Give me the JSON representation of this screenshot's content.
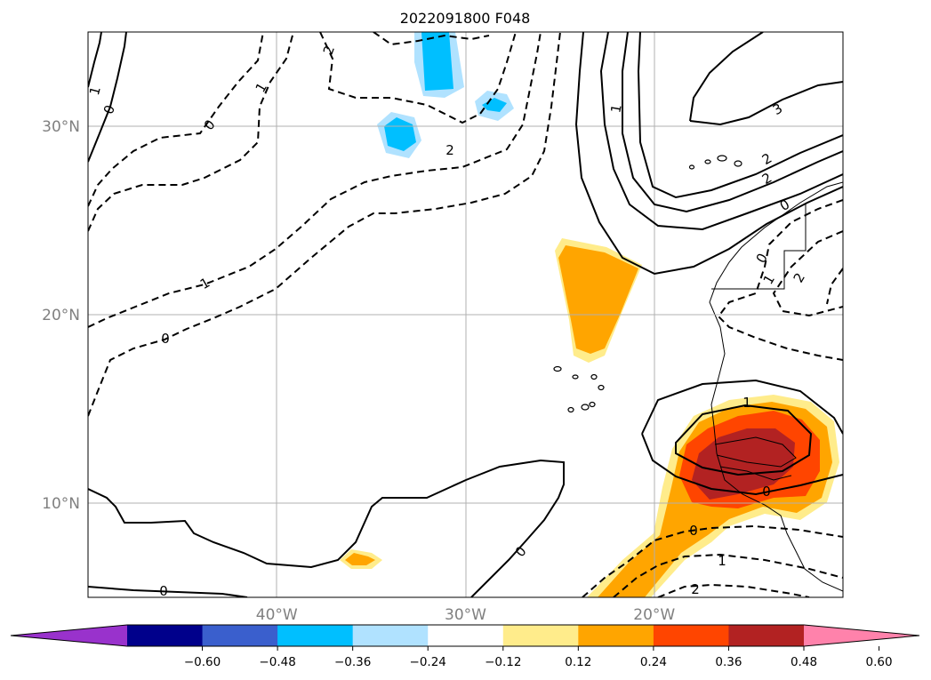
{
  "chart_data": {
    "type": "heatmap",
    "title": "2022091800 F048",
    "map": {
      "lon_range": [
        -50,
        -10
      ],
      "lat_range": [
        5,
        35
      ],
      "lon_ticks": [
        {
          "value": -40,
          "label": "40°W"
        },
        {
          "value": -30,
          "label": "30°W"
        },
        {
          "value": -20,
          "label": "20°W"
        }
      ],
      "lat_ticks": [
        {
          "value": 30,
          "label": "30°N"
        },
        {
          "value": 20,
          "label": "20°N"
        },
        {
          "value": 10,
          "label": "10°N"
        }
      ],
      "grid": true
    },
    "colorbar": {
      "orientation": "horizontal",
      "extend": "both",
      "boundaries": [
        -0.6,
        -0.48,
        -0.36,
        -0.24,
        -0.12,
        0.12,
        0.24,
        0.36,
        0.48,
        0.6
      ],
      "tick_labels": [
        "−0.60",
        "−0.48",
        "−0.36",
        "−0.24",
        "−0.12",
        "0.12",
        "0.24",
        "0.36",
        "0.48",
        "0.60"
      ],
      "colors": [
        "#9932cc",
        "#00008b",
        "#3a5fcd",
        "#00bfff",
        "#b0e2ff",
        "#ffffff",
        "#ffec8b",
        "#ffa500",
        "#ff4500",
        "#b22222",
        "#ff82ab"
      ]
    },
    "shaded_regions": [
      {
        "name": "canary-positive",
        "level": 0.24,
        "lon": -23.5,
        "lat": 21.5
      },
      {
        "name": "west-africa-positive",
        "level": 0.48,
        "lon": -14.5,
        "lat": 11.5
      },
      {
        "name": "tropical-atlantic-small-positive",
        "level": 0.24,
        "lon": -35.6,
        "lat": 7.0
      },
      {
        "name": "north-atlantic-negative",
        "level": -0.24,
        "lon": -31.5,
        "lat": 33.5
      }
    ],
    "contours": {
      "solid_labels": [
        "0",
        "1",
        "2",
        "3",
        "1",
        "0",
        "0",
        "1",
        "0"
      ],
      "dashed_labels": [
        "0",
        "1",
        "2",
        "1",
        "2",
        "0",
        "1",
        "2",
        "0",
        "1",
        "2"
      ]
    }
  }
}
